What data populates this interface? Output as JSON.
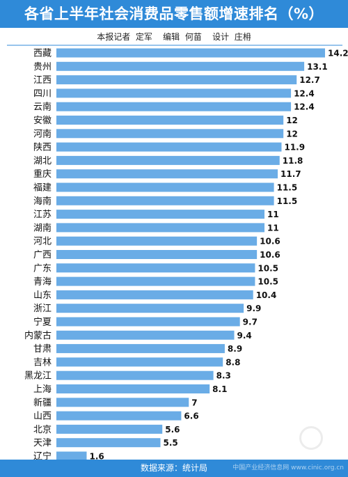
{
  "header": {
    "title": "各省上半年社会消费品零售额增速排名（%）",
    "credits": "本报记者  定军    编辑  何苗    设计  庄枏"
  },
  "footer": {
    "source": "数据来源：统计局",
    "watermark": "中国产业经济信息网 www.cinic.org.cn"
  },
  "colors": {
    "header_bg": "#2f8ad8",
    "bar": "#6aace6",
    "divider": "#2f8ad8"
  },
  "chart_data": {
    "type": "bar",
    "orientation": "horizontal",
    "title": "各省上半年社会消费品零售额增速排名（%）",
    "categories": [
      "西藏",
      "贵州",
      "江西",
      "四川",
      "云南",
      "安徽",
      "河南",
      "陕西",
      "湖北",
      "重庆",
      "福建",
      "海南",
      "江苏",
      "湖南",
      "河北",
      "广西",
      "广东",
      "青海",
      "山东",
      "浙江",
      "宁夏",
      "内蒙古",
      "甘肃",
      "吉林",
      "黑龙江",
      "上海",
      "新疆",
      "山西",
      "北京",
      "天津",
      "辽宁"
    ],
    "values": [
      14.2,
      13.1,
      12.7,
      12.4,
      12.4,
      12,
      12,
      11.9,
      11.8,
      11.7,
      11.5,
      11.5,
      11,
      11,
      10.6,
      10.6,
      10.5,
      10.5,
      10.4,
      9.9,
      9.7,
      9.4,
      8.9,
      8.8,
      8.3,
      8.1,
      7,
      6.6,
      5.6,
      5.5,
      1.6
    ],
    "xlabel": "",
    "ylabel": "",
    "grid": false,
    "legend": "none"
  }
}
